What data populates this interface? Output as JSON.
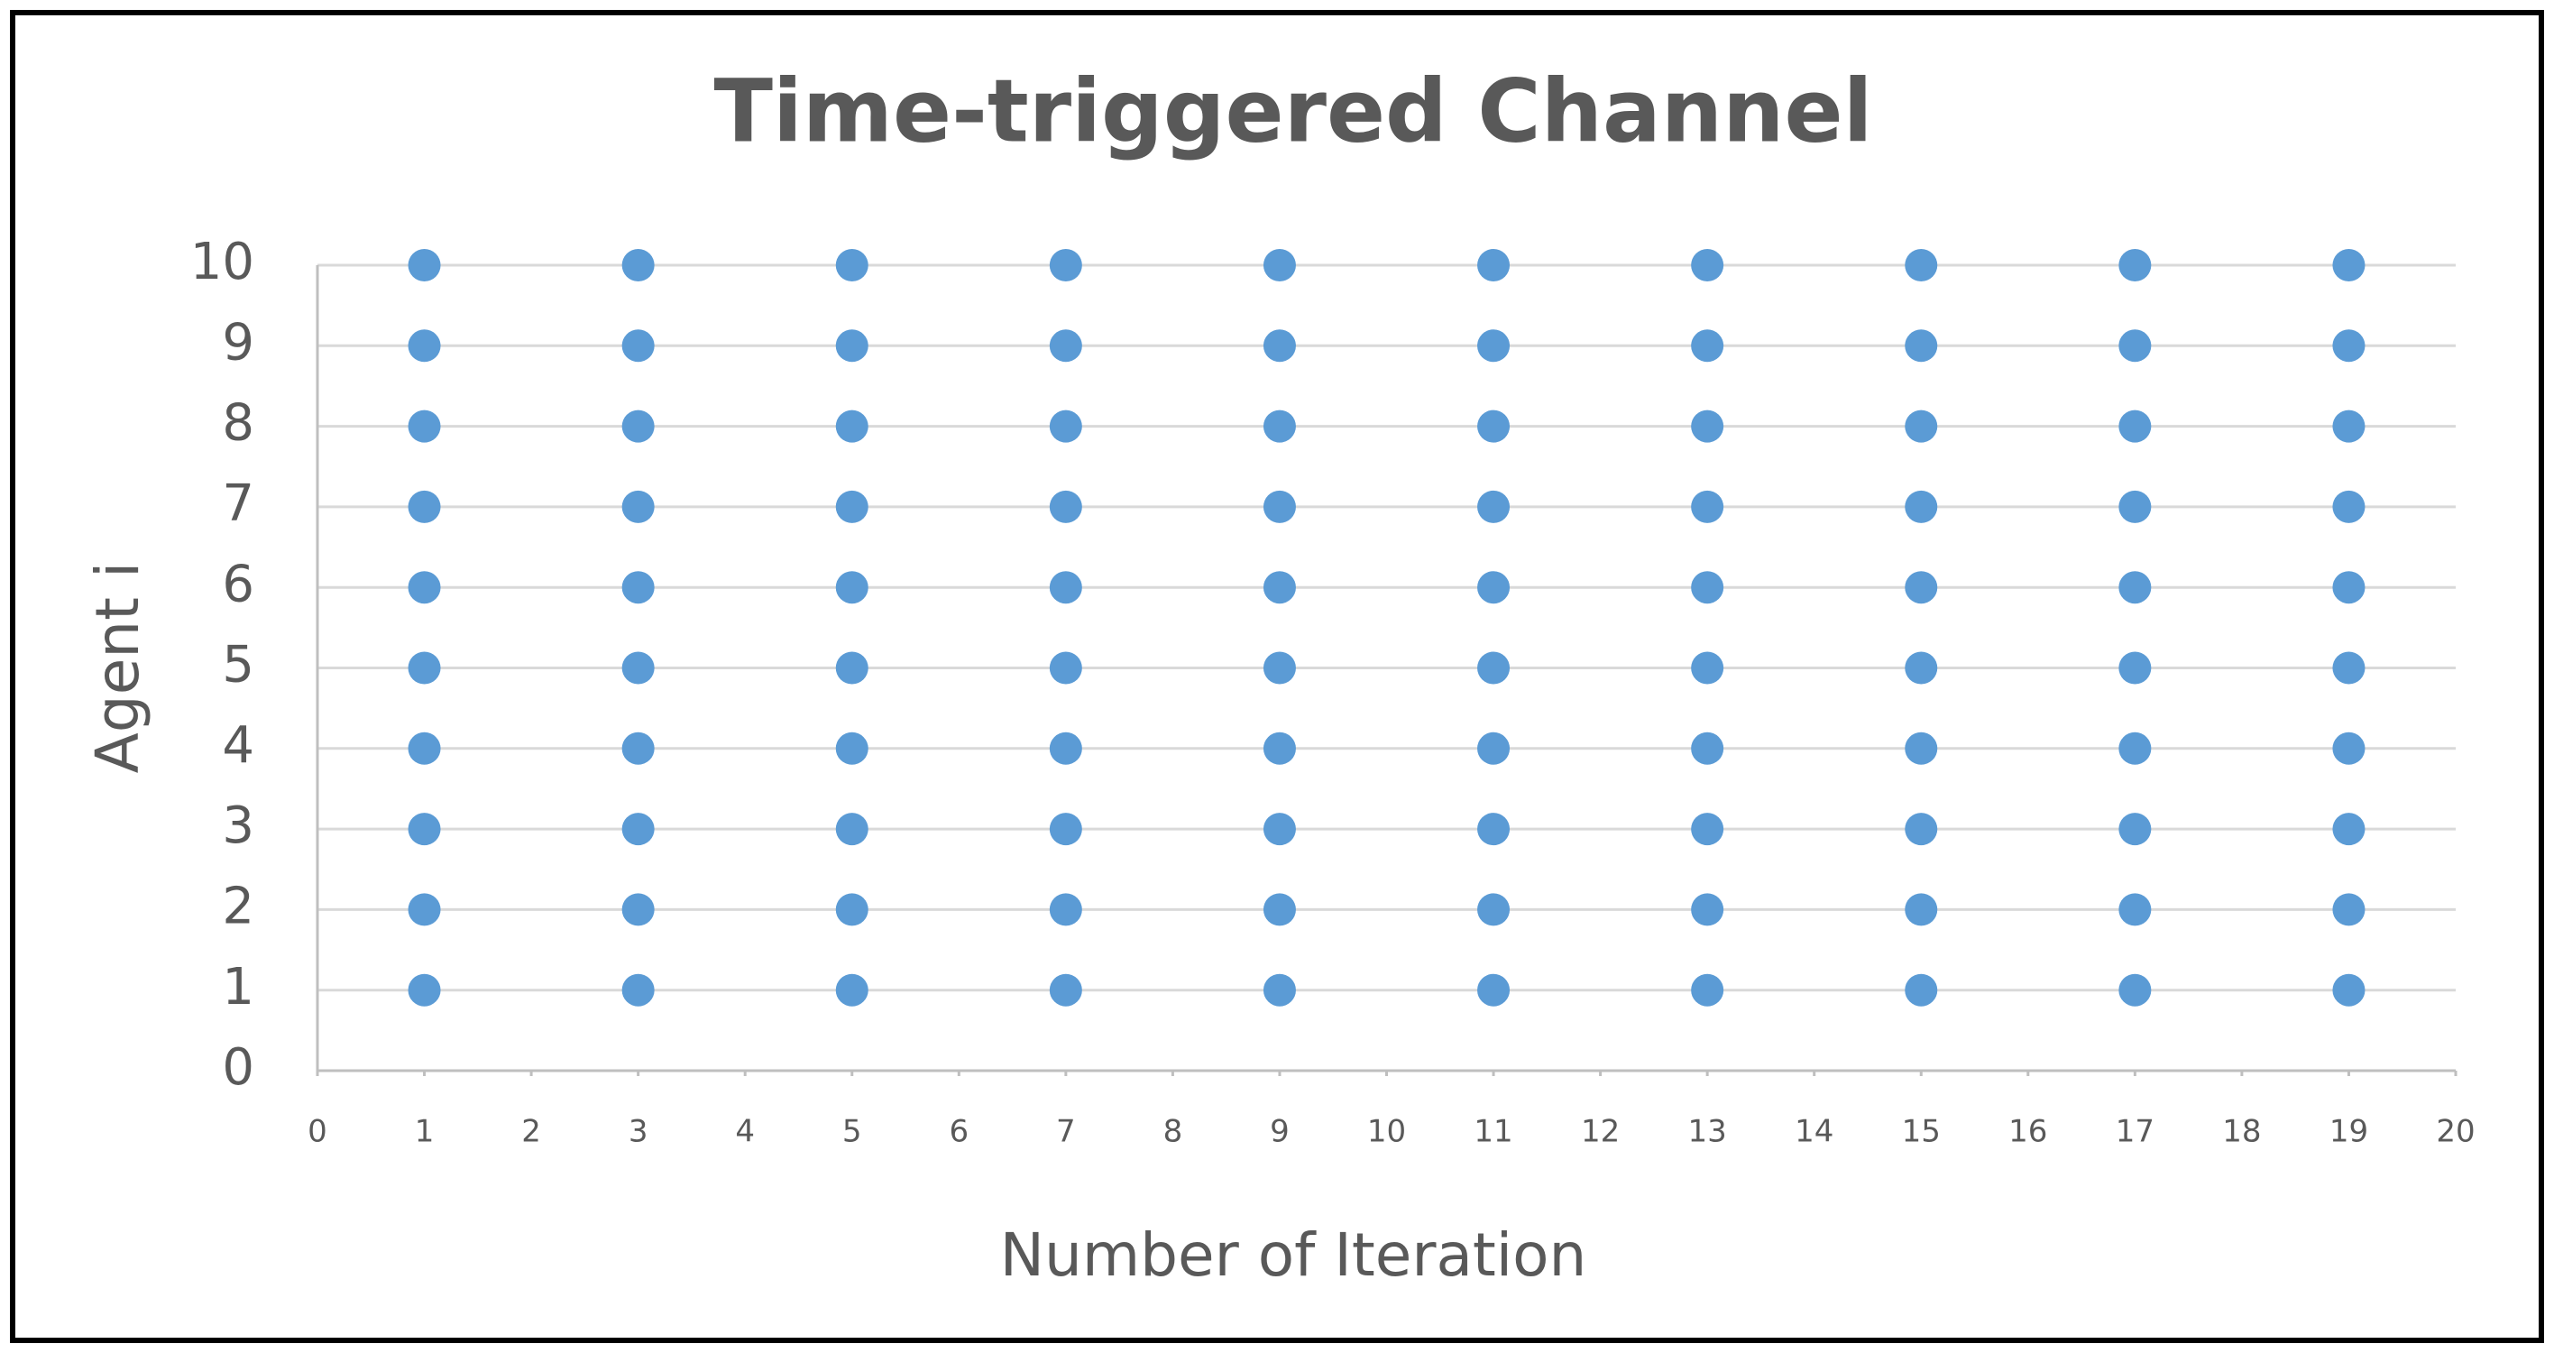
{
  "chart_data": {
    "type": "scatter",
    "title": "Time-triggered Channel",
    "x_label": "Number of Iteration",
    "y_label": "Agent i",
    "x": [
      1,
      1,
      1,
      1,
      1,
      1,
      1,
      1,
      1,
      1,
      3,
      3,
      3,
      3,
      3,
      3,
      3,
      3,
      3,
      3,
      5,
      5,
      5,
      5,
      5,
      5,
      5,
      5,
      5,
      5,
      7,
      7,
      7,
      7,
      7,
      7,
      7,
      7,
      7,
      7,
      9,
      9,
      9,
      9,
      9,
      9,
      9,
      9,
      9,
      9,
      11,
      11,
      11,
      11,
      11,
      11,
      11,
      11,
      11,
      11,
      13,
      13,
      13,
      13,
      13,
      13,
      13,
      13,
      13,
      13,
      15,
      15,
      15,
      15,
      15,
      15,
      15,
      15,
      15,
      15,
      17,
      17,
      17,
      17,
      17,
      17,
      17,
      17,
      17,
      17,
      19,
      19,
      19,
      19,
      19,
      19,
      19,
      19,
      19,
      19
    ],
    "values": [
      1,
      2,
      3,
      4,
      5,
      6,
      7,
      8,
      9,
      10,
      1,
      2,
      3,
      4,
      5,
      6,
      7,
      8,
      9,
      10,
      1,
      2,
      3,
      4,
      5,
      6,
      7,
      8,
      9,
      10,
      1,
      2,
      3,
      4,
      5,
      6,
      7,
      8,
      9,
      10,
      1,
      2,
      3,
      4,
      5,
      6,
      7,
      8,
      9,
      10,
      1,
      2,
      3,
      4,
      5,
      6,
      7,
      8,
      9,
      10,
      1,
      2,
      3,
      4,
      5,
      6,
      7,
      8,
      9,
      10,
      1,
      2,
      3,
      4,
      5,
      6,
      7,
      8,
      9,
      10,
      1,
      2,
      3,
      4,
      5,
      6,
      7,
      8,
      9,
      10,
      1,
      2,
      3,
      4,
      5,
      6,
      7,
      8,
      9,
      10
    ],
    "color": "#5b9bd5",
    "xlim": [
      0,
      20
    ],
    "xticks": [
      0,
      1,
      2,
      3,
      4,
      5,
      6,
      7,
      8,
      9,
      10,
      11,
      12,
      13,
      14,
      15,
      16,
      17,
      18,
      19,
      20
    ],
    "ylim": [
      0,
      10
    ],
    "yticks": [
      0,
      1,
      2,
      3,
      4,
      5,
      6,
      7,
      8,
      9,
      10
    ],
    "grid": true
  }
}
